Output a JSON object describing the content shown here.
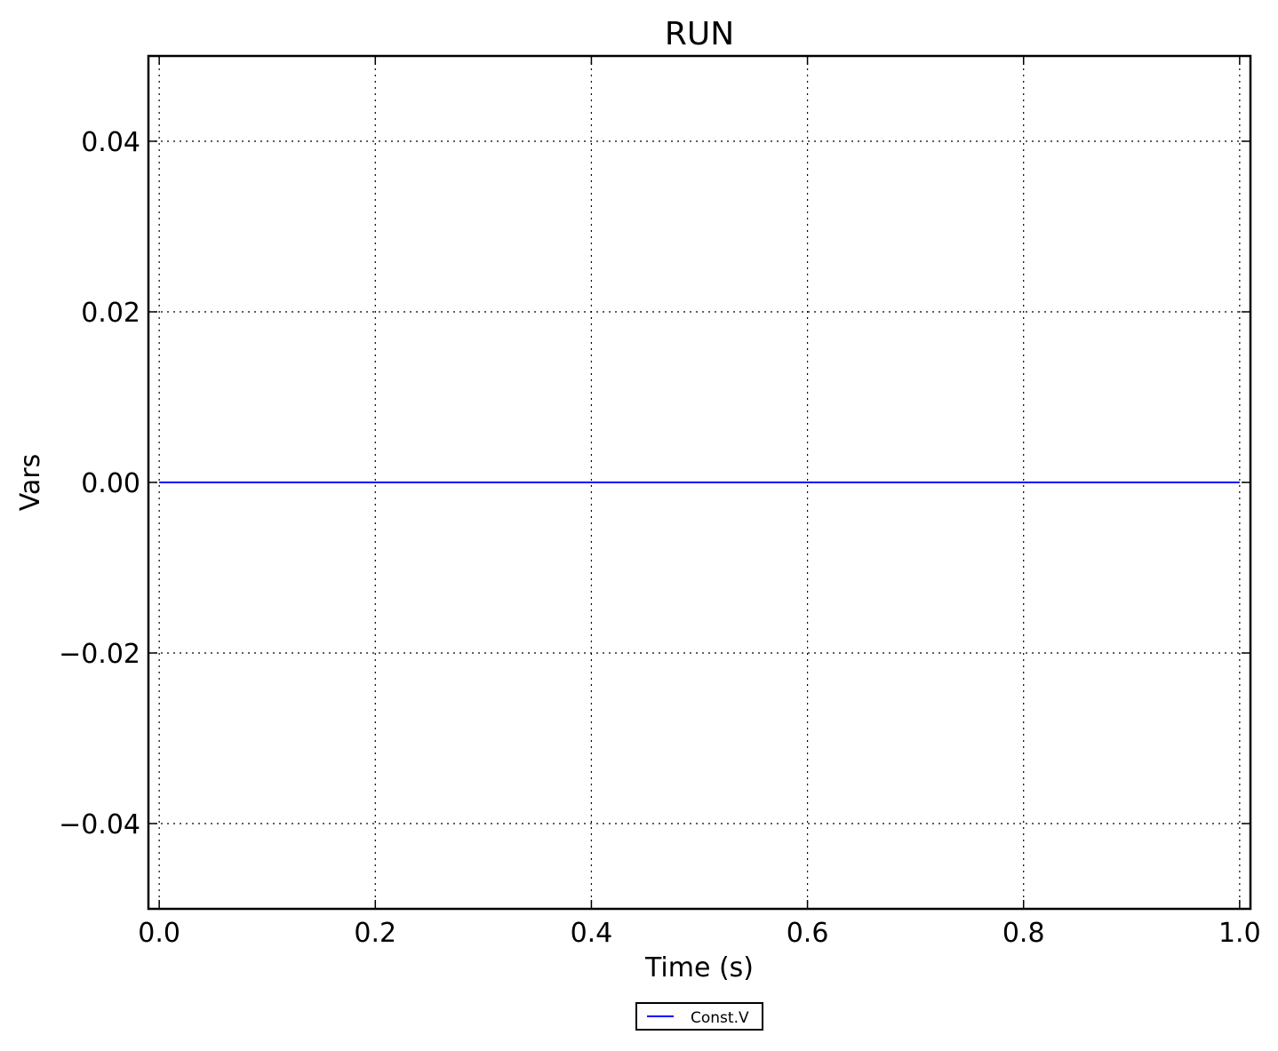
{
  "chart_data": {
    "type": "line",
    "title": "RUN",
    "xlabel": "Time (s)",
    "ylabel": "Vars",
    "xlim": [
      -0.01,
      1.01
    ],
    "ylim": [
      -0.05,
      0.05
    ],
    "xticks": [
      0.0,
      0.2,
      0.4,
      0.6,
      0.8,
      1.0
    ],
    "xtick_labels": [
      "0.0",
      "0.2",
      "0.4",
      "0.6",
      "0.8",
      "1.0"
    ],
    "yticks": [
      -0.04,
      -0.02,
      0.0,
      0.02,
      0.04
    ],
    "ytick_labels": [
      "−0.04",
      "−0.02",
      "0.00",
      "0.02",
      "0.04"
    ],
    "grid": true,
    "legend_placement": "bottom-center, below axes",
    "series": [
      {
        "name": "Const.V",
        "color": "#0000ff",
        "x": [
          0.0,
          1.0
        ],
        "y": [
          0.0,
          0.0
        ]
      }
    ]
  }
}
